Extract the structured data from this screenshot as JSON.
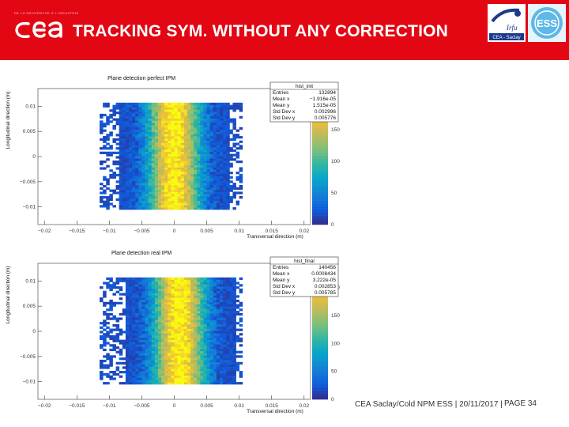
{
  "header": {
    "tagline": "DE LA RECHERCHE À L'INDUSTRIE",
    "logo_text": "cea",
    "title": "TRACKING SYM. WITHOUT ANY CORRECTION",
    "partner_logos": [
      {
        "name": "irfu",
        "lines": [
          "Irfu",
          "CEA - Saclay"
        ]
      },
      {
        "name": "ess",
        "lines": [
          "ESS"
        ]
      }
    ]
  },
  "footer": {
    "text": "CEA Saclay/Cold NPM ESS | 20/11/2017 |",
    "page": "PAGE 34"
  },
  "chart_data": [
    {
      "type": "heatmap",
      "title": "Plane detection perfect IPM",
      "xlabel": "Transversal direction (m)",
      "ylabel": "Longitudinal direction (m)",
      "xlim": [
        -0.021,
        0.021
      ],
      "ylim": [
        -0.0135,
        0.0135
      ],
      "xticks": [
        "-0.02",
        "-0.015",
        "-0.01",
        "-0.005",
        "0",
        "0.005",
        "0.01",
        "0.015",
        "0.02"
      ],
      "yticks": [
        "-0.01",
        "-0.005",
        "0",
        "0.005",
        "0.01"
      ],
      "data_region": {
        "x": [
          -0.0115,
          0.0105
        ],
        "y": [
          -0.0105,
          0.0107
        ]
      },
      "zticks": [
        "0",
        "50",
        "100",
        "150"
      ],
      "zmax": 190,
      "stats": {
        "name": "hist_init",
        "rows": [
          [
            "Entries",
            "132894"
          ],
          [
            "Mean x",
            "-1.916e-05"
          ],
          [
            "Mean y",
            "1.515e-05"
          ],
          [
            "Std Dev x",
            "0.002996"
          ],
          [
            "Std Dev y",
            "0.005776"
          ]
        ]
      }
    },
    {
      "type": "heatmap",
      "title": "Plane detection real IPM",
      "xlabel": "Transversal direction (m)",
      "ylabel": "Longitudinal direction (m)",
      "xlim": [
        -0.021,
        0.021
      ],
      "ylim": [
        -0.0135,
        0.0135
      ],
      "xticks": [
        "-0.02",
        "-0.015",
        "-0.01",
        "-0.005",
        "0",
        "0.005",
        "0.01",
        "0.015",
        "0.02"
      ],
      "yticks": [
        "-0.01",
        "-0.005",
        "0",
        "0.005",
        "0.01"
      ],
      "data_region": {
        "x": [
          -0.0115,
          0.0105
        ],
        "y": [
          -0.0105,
          0.0107
        ]
      },
      "zticks": [
        "0",
        "50",
        "100",
        "150",
        "200"
      ],
      "zmax": 215,
      "stats": {
        "name": "hist_final",
        "rows": [
          [
            "Entries",
            "140456"
          ],
          [
            "Mean x",
            "0.0008434"
          ],
          [
            "Mean y",
            "3.222e-05"
          ],
          [
            "Std Dev x",
            "0.002853"
          ],
          [
            "Std Dev y",
            "0.005785"
          ]
        ]
      }
    }
  ]
}
